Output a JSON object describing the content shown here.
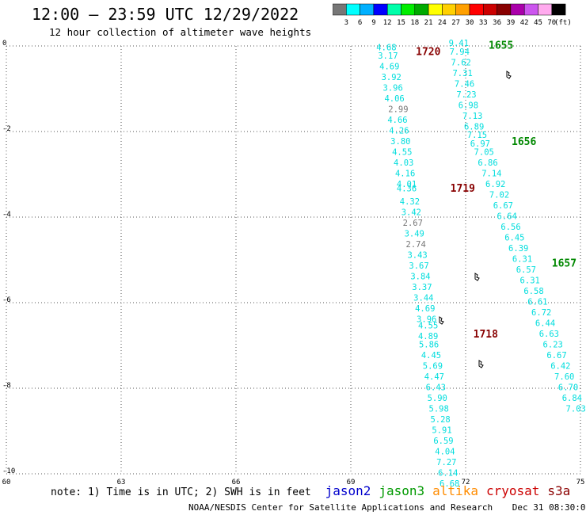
{
  "header": {
    "title": "12:00 – 23:59 UTC 12/29/2022",
    "subtitle": "12 hour collection of altimeter wave heights"
  },
  "footer": {
    "note": "note:  1) Time is in UTC;  2) SWH is in feet",
    "credit": "NOAA/NESDIS Center for Satellite Applications and Research",
    "generated": "Dec 31 08:30:09 UTC 2022",
    "satellites": [
      {
        "name": "jason2",
        "color": "#0000cc"
      },
      {
        "name": "jason3",
        "color": "#009900"
      },
      {
        "name": "altika",
        "color": "#ff8c00"
      },
      {
        "name": "cryosat",
        "color": "#cc0000"
      },
      {
        "name": "s3a",
        "color": "#8b0000"
      }
    ]
  },
  "colorbar": {
    "unit": "(ft)",
    "labels": [
      "3",
      "6",
      "9",
      "12",
      "15",
      "18",
      "21",
      "24",
      "27",
      "30",
      "33",
      "36",
      "39",
      "42",
      "45",
      "70"
    ],
    "colors": [
      "#777777",
      "#00ffff",
      "#00b0ff",
      "#0000ff",
      "#00ffaa",
      "#00ee00",
      "#00aa00",
      "#ffff00",
      "#ffd000",
      "#ffa000",
      "#ff0000",
      "#cc0000",
      "#880000",
      "#aa00aa",
      "#cc55ee",
      "#ffaaee",
      "#000000"
    ]
  },
  "chart_data": {
    "type": "scatter",
    "xlim": [
      60,
      75
    ],
    "ylim": [
      -10,
      0
    ],
    "xticks": [
      60,
      63,
      66,
      69,
      72,
      75
    ],
    "yticks": [
      0,
      -2,
      -4,
      -6,
      -8,
      -10
    ],
    "grid": true,
    "passes": [
      {
        "time_labels": [
          {
            "label": "1720",
            "x": 70.7,
            "y": -0.1
          },
          {
            "label": "1719",
            "x": 71.6,
            "y": -3.3
          },
          {
            "label": "1718",
            "x": 72.2,
            "y": -6.7
          }
        ],
        "points": [
          {
            "x": 69.93,
            "y": -0.1,
            "v": 4.68
          },
          {
            "x": 69.97,
            "y": -0.3,
            "v": 3.17
          },
          {
            "x": 70.01,
            "y": -0.55,
            "v": 4.69
          },
          {
            "x": 70.06,
            "y": -0.8,
            "v": 3.92
          },
          {
            "x": 70.1,
            "y": -1.05,
            "v": 3.96
          },
          {
            "x": 70.14,
            "y": -1.3,
            "v": 4.06
          },
          {
            "x": 70.24,
            "y": -1.55,
            "v": 2.99
          },
          {
            "x": 70.22,
            "y": -1.8,
            "v": 4.66
          },
          {
            "x": 70.26,
            "y": -2.05,
            "v": 4.26
          },
          {
            "x": 70.3,
            "y": -2.3,
            "v": 3.8
          },
          {
            "x": 70.34,
            "y": -2.55,
            "v": 4.55
          },
          {
            "x": 70.38,
            "y": -2.8,
            "v": 4.03
          },
          {
            "x": 70.42,
            "y": -3.05,
            "v": 4.16
          },
          {
            "x": 70.46,
            "y": -3.3,
            "v": 4.01
          },
          {
            "x": 70.46,
            "y": -3.4,
            "v": 4.36
          },
          {
            "x": 70.54,
            "y": -3.7,
            "v": 4.32
          },
          {
            "x": 70.58,
            "y": -3.95,
            "v": 3.42
          },
          {
            "x": 70.62,
            "y": -4.2,
            "v": 2.67
          },
          {
            "x": 70.66,
            "y": -4.45,
            "v": 3.49
          },
          {
            "x": 70.7,
            "y": -4.7,
            "v": 2.74
          },
          {
            "x": 70.74,
            "y": -4.95,
            "v": 3.43
          },
          {
            "x": 70.78,
            "y": -5.2,
            "v": 3.67
          },
          {
            "x": 70.82,
            "y": -5.45,
            "v": 3.84
          },
          {
            "x": 70.86,
            "y": -5.7,
            "v": 3.37
          },
          {
            "x": 70.9,
            "y": -5.95,
            "v": 3.44
          },
          {
            "x": 70.94,
            "y": -6.2,
            "v": 4.69
          },
          {
            "x": 70.98,
            "y": -6.45,
            "v": 3.96
          },
          {
            "x": 71.02,
            "y": -6.6,
            "v": 4.55
          },
          {
            "x": 71.02,
            "y": -6.85,
            "v": 4.89
          },
          {
            "x": 71.04,
            "y": -7.05,
            "v": 5.86
          },
          {
            "x": 71.1,
            "y": -7.3,
            "v": 4.45
          },
          {
            "x": 71.14,
            "y": -7.55,
            "v": 5.69
          },
          {
            "x": 71.18,
            "y": -7.8,
            "v": 4.47
          },
          {
            "x": 71.22,
            "y": -8.05,
            "v": 6.43
          },
          {
            "x": 71.26,
            "y": -8.3,
            "v": 5.9
          },
          {
            "x": 71.3,
            "y": -8.55,
            "v": 5.98
          },
          {
            "x": 71.34,
            "y": -8.8,
            "v": 5.28
          },
          {
            "x": 71.38,
            "y": -9.05,
            "v": 5.91
          },
          {
            "x": 71.42,
            "y": -9.3,
            "v": 6.59
          },
          {
            "x": 71.46,
            "y": -9.55,
            "v": 4.04
          },
          {
            "x": 71.5,
            "y": -9.8,
            "v": 7.27
          },
          {
            "x": 71.54,
            "y": -10.05,
            "v": 6.14
          },
          {
            "x": 71.58,
            "y": -10.3,
            "v": 6.68
          }
        ]
      },
      {
        "time_labels": [
          {
            "label": "1655",
            "x": 72.6,
            "y": 0.05
          },
          {
            "label": "1656",
            "x": 73.2,
            "y": -2.2
          },
          {
            "label": "1657",
            "x": 74.25,
            "y": -5.05
          }
        ],
        "points": [
          {
            "x": 71.82,
            "y": 0.0,
            "v": 9.41
          },
          {
            "x": 71.84,
            "y": -0.2,
            "v": 7.94
          },
          {
            "x": 71.88,
            "y": -0.45,
            "v": 7.62
          },
          {
            "x": 71.92,
            "y": -0.7,
            "v": 7.31
          },
          {
            "x": 71.97,
            "y": -0.95,
            "v": 7.46
          },
          {
            "x": 72.02,
            "y": -1.2,
            "v": 7.23
          },
          {
            "x": 72.07,
            "y": -1.45,
            "v": 6.98
          },
          {
            "x": 72.18,
            "y": -1.7,
            "v": 7.13
          },
          {
            "x": 72.22,
            "y": -1.95,
            "v": 6.89
          },
          {
            "x": 72.3,
            "y": -2.15,
            "v": 7.15
          },
          {
            "x": 72.38,
            "y": -2.35,
            "v": 6.97
          },
          {
            "x": 72.48,
            "y": -2.55,
            "v": 7.05
          },
          {
            "x": 72.58,
            "y": -2.8,
            "v": 6.86
          },
          {
            "x": 72.68,
            "y": -3.05,
            "v": 7.14
          },
          {
            "x": 72.78,
            "y": -3.3,
            "v": 6.92
          },
          {
            "x": 72.88,
            "y": -3.55,
            "v": 7.02
          },
          {
            "x": 72.98,
            "y": -3.8,
            "v": 6.67
          },
          {
            "x": 73.08,
            "y": -4.05,
            "v": 6.64
          },
          {
            "x": 73.18,
            "y": -4.3,
            "v": 6.56
          },
          {
            "x": 73.28,
            "y": -4.55,
            "v": 6.45
          },
          {
            "x": 73.38,
            "y": -4.8,
            "v": 6.39
          },
          {
            "x": 73.48,
            "y": -5.05,
            "v": 6.31
          },
          {
            "x": 73.58,
            "y": -5.3,
            "v": 6.57
          },
          {
            "x": 73.68,
            "y": -5.55,
            "v": 6.31
          },
          {
            "x": 73.78,
            "y": -5.8,
            "v": 6.58
          },
          {
            "x": 73.88,
            "y": -6.05,
            "v": 6.61
          },
          {
            "x": 73.98,
            "y": -6.3,
            "v": 6.72
          },
          {
            "x": 74.08,
            "y": -6.55,
            "v": 6.44
          },
          {
            "x": 74.18,
            "y": -6.8,
            "v": 6.63
          },
          {
            "x": 74.28,
            "y": -7.05,
            "v": 6.23
          },
          {
            "x": 74.38,
            "y": -7.3,
            "v": 6.67
          },
          {
            "x": 74.48,
            "y": -7.55,
            "v": 6.42
          },
          {
            "x": 74.58,
            "y": -7.8,
            "v": 7.6
          },
          {
            "x": 74.68,
            "y": -8.05,
            "v": 6.7
          },
          {
            "x": 74.78,
            "y": -8.3,
            "v": 6.84
          },
          {
            "x": 74.88,
            "y": -8.55,
            "v": 7.03
          }
        ]
      }
    ]
  }
}
